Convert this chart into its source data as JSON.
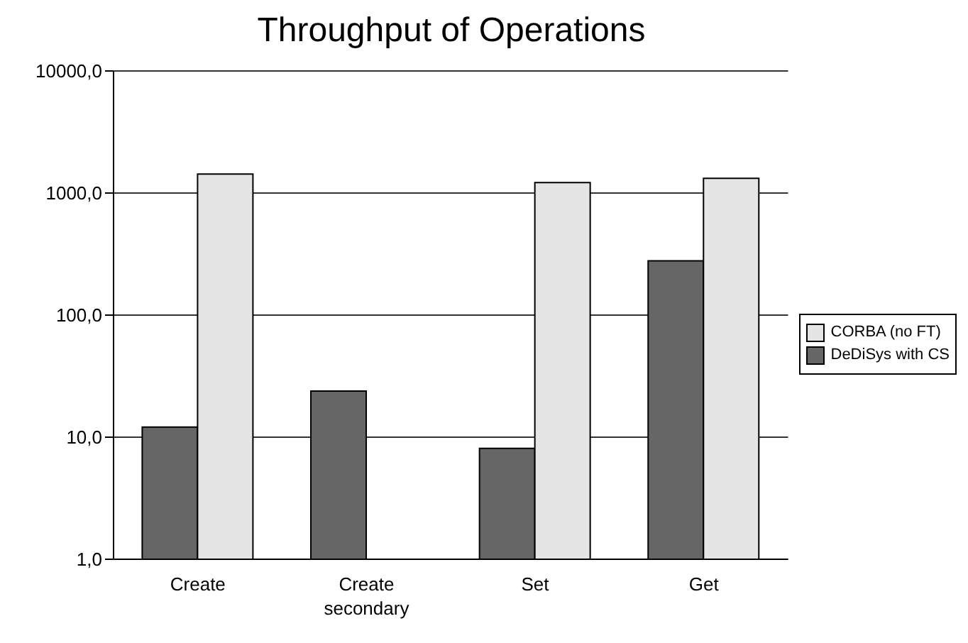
{
  "chart_data": {
    "type": "bar",
    "title": "Throughput of Operations",
    "categories": [
      "Create",
      "Create secondary",
      "Set",
      "Get"
    ],
    "series": [
      {
        "name": "DeDiSys with CS",
        "color": "#666666",
        "values": [
          12.1,
          23.9,
          8.1,
          278
        ]
      },
      {
        "name": "CORBA (no FT)",
        "color": "#e5e5e5",
        "values": [
          1430,
          null,
          1217,
          1321
        ]
      }
    ],
    "log": "y",
    "ylim": [
      1,
      10000
    ],
    "yticks": [
      {
        "value": 1,
        "label": "1,0"
      },
      {
        "value": 10,
        "label": "10,0"
      },
      {
        "value": 100,
        "label": "100,0"
      },
      {
        "value": 1000,
        "label": "1000,0"
      },
      {
        "value": 10000,
        "label": "10000,0"
      }
    ],
    "grid": "y",
    "legend": "right"
  }
}
